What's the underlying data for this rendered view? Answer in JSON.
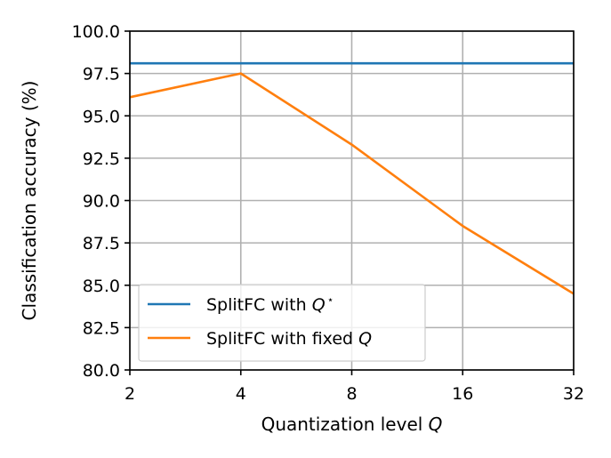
{
  "chart_data": {
    "type": "line",
    "title": "",
    "xlabel": "Quantization level",
    "xlabel_var": "Q",
    "ylabel": "Classification accuracy (%)",
    "x": [
      2,
      4,
      8,
      16,
      32
    ],
    "x_tick_labels": [
      "2",
      "4",
      "8",
      "16",
      "32"
    ],
    "x_scale": "log2",
    "ylim": [
      80.0,
      100.0
    ],
    "y_ticks": [
      80.0,
      82.5,
      85.0,
      87.5,
      90.0,
      92.5,
      95.0,
      97.5,
      100.0
    ],
    "y_tick_labels": [
      "80.0",
      "82.5",
      "85.0",
      "87.5",
      "90.0",
      "92.5",
      "95.0",
      "97.5",
      "100.0"
    ],
    "grid": true,
    "legend_position": "lower-left",
    "series": [
      {
        "name": "SplitFC with Q*",
        "legend_text": "SplitFC with ",
        "legend_var": "Q",
        "legend_sup": "⋆",
        "color": "#1f77b4",
        "values": [
          98.1,
          98.1,
          98.1,
          98.1,
          98.1
        ]
      },
      {
        "name": "SplitFC with fixed Q",
        "legend_text": "SplitFC with fixed ",
        "legend_var": "Q",
        "legend_sup": "",
        "color": "#ff7f0e",
        "values": [
          96.1,
          97.5,
          93.3,
          88.5,
          84.5
        ]
      }
    ]
  }
}
